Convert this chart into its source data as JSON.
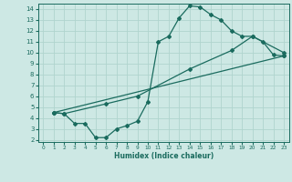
{
  "xlabel": "Humidex (Indice chaleur)",
  "xlim": [
    -0.5,
    23.5
  ],
  "ylim": [
    1.8,
    14.5
  ],
  "xticks": [
    0,
    1,
    2,
    3,
    4,
    5,
    6,
    7,
    8,
    9,
    10,
    11,
    12,
    13,
    14,
    15,
    16,
    17,
    18,
    19,
    20,
    21,
    22,
    23
  ],
  "yticks": [
    2,
    3,
    4,
    5,
    6,
    7,
    8,
    9,
    10,
    11,
    12,
    13,
    14
  ],
  "bg_color": "#cde8e4",
  "grid_color": "#b0d4ce",
  "line_color": "#1a6b5e",
  "line1_x": [
    1,
    2,
    3,
    4,
    5,
    6,
    7,
    8,
    9,
    10,
    11,
    12,
    13,
    14,
    15,
    16,
    17,
    18,
    19,
    20,
    21,
    22,
    23
  ],
  "line1_y": [
    4.5,
    4.4,
    3.5,
    3.5,
    2.2,
    2.2,
    3.0,
    3.3,
    3.7,
    5.5,
    11.0,
    11.5,
    13.2,
    14.3,
    14.2,
    13.5,
    13.0,
    12.0,
    11.5,
    11.5,
    11.0,
    9.8,
    9.7
  ],
  "line2_x": [
    1,
    2,
    6,
    9,
    14,
    18,
    20,
    23
  ],
  "line2_y": [
    4.5,
    4.4,
    5.3,
    6.0,
    8.5,
    10.2,
    11.5,
    10.0
  ],
  "line3_x": [
    1,
    23
  ],
  "line3_y": [
    4.5,
    9.7
  ]
}
